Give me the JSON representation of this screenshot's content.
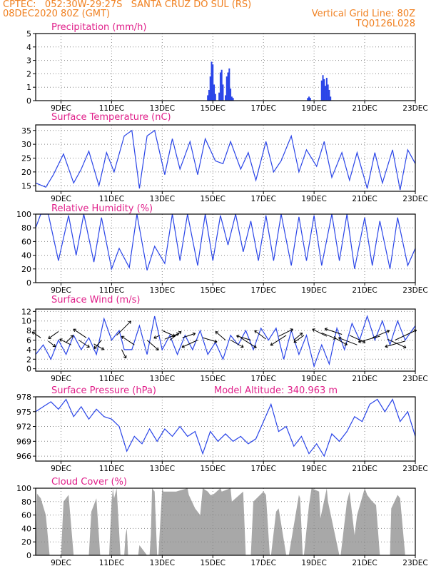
{
  "header": {
    "line1": "CPTEC:   052:30W-29:27S   SANTA CRUZ DO SUL (RS)",
    "line2_left": "08DEC2020 80Z (GMT)",
    "line2_right": "Vertical Grid Line: 80Z",
    "line3_right": "TQ0126L028"
  },
  "colors": {
    "header": "#f08020",
    "title": "#e0208a",
    "series": "#2a45e8",
    "cloud": "#a8a8a8",
    "grid": "#888888",
    "axis": "#000000"
  },
  "x_axis": {
    "start_day": 8.0,
    "end_day": 23.0,
    "tick_days": [
      9,
      11,
      13,
      15,
      17,
      19,
      21,
      23
    ],
    "tick_labels": [
      "9DEC",
      "11DEC",
      "13DEC",
      "15DEC",
      "17DEC",
      "19DEC",
      "21DEC",
      "23DEC"
    ]
  },
  "chart_data": [
    {
      "type": "bar",
      "title": "Precipitation (mm/h)",
      "ylim": [
        0,
        5
      ],
      "yticks": [
        0,
        1,
        2,
        3,
        4,
        5
      ],
      "x": [
        14.8,
        14.85,
        14.9,
        14.95,
        15.0,
        15.05,
        15.1,
        15.25,
        15.3,
        15.35,
        15.4,
        15.5,
        15.55,
        15.6,
        15.65,
        15.7,
        15.75,
        15.8,
        18.75,
        18.8,
        18.85,
        19.3,
        19.35,
        19.4,
        19.45,
        19.5,
        19.55,
        19.6,
        19.65
      ],
      "values": [
        0.4,
        0.8,
        1.8,
        2.9,
        2.7,
        1.2,
        0.5,
        0.6,
        2.1,
        2.3,
        1.2,
        0.4,
        1.8,
        2.1,
        2.4,
        0.9,
        0.3,
        0.2,
        0.2,
        0.3,
        0.2,
        1.5,
        1.9,
        1.6,
        1.1,
        1.7,
        1.2,
        0.8,
        0.3
      ]
    },
    {
      "type": "line",
      "title": "Surface Temperature (nC)",
      "ylim": [
        13,
        37
      ],
      "yticks": [
        15,
        20,
        25,
        30,
        35
      ],
      "x": [
        8.0,
        8.4,
        8.7,
        9.1,
        9.5,
        9.8,
        10.1,
        10.5,
        10.8,
        11.1,
        11.5,
        11.8,
        12.1,
        12.4,
        12.7,
        13.1,
        13.4,
        13.7,
        14.1,
        14.4,
        14.7,
        15.1,
        15.4,
        15.7,
        16.1,
        16.4,
        16.7,
        17.1,
        17.4,
        17.7,
        18.1,
        18.4,
        18.7,
        19.1,
        19.4,
        19.7,
        20.1,
        20.4,
        20.7,
        21.1,
        21.4,
        21.7,
        22.1,
        22.4,
        22.7,
        23.0
      ],
      "values": [
        16,
        14.5,
        19,
        26.5,
        16,
        21,
        27.5,
        15,
        27,
        20,
        33,
        35,
        14,
        33,
        35,
        19,
        32,
        21,
        31,
        19,
        32,
        24,
        23,
        31,
        21,
        27,
        17,
        31,
        20,
        24,
        33,
        20,
        28,
        22,
        31,
        18,
        27,
        17,
        27,
        14,
        27,
        16,
        28,
        13.5,
        28,
        23
      ]
    },
    {
      "type": "line",
      "title": "Relative Humidity (%)",
      "ylim": [
        0,
        100
      ],
      "yticks": [
        0,
        20,
        40,
        60,
        80,
        100
      ],
      "x": [
        8.0,
        8.2,
        8.5,
        8.9,
        9.3,
        9.6,
        9.9,
        10.3,
        10.6,
        11.0,
        11.3,
        11.7,
        12.0,
        12.4,
        12.7,
        13.1,
        13.4,
        13.7,
        14.0,
        14.4,
        14.7,
        15.0,
        15.3,
        15.6,
        15.9,
        16.2,
        16.5,
        16.8,
        17.1,
        17.4,
        17.7,
        18.1,
        18.4,
        18.7,
        19.0,
        19.3,
        19.7,
        20.0,
        20.3,
        20.6,
        21.0,
        21.3,
        21.6,
        22.0,
        22.3,
        22.7,
        23.0
      ],
      "values": [
        80,
        100,
        100,
        32,
        98,
        40,
        100,
        30,
        95,
        20,
        50,
        22,
        100,
        18,
        53,
        28,
        100,
        32,
        100,
        25,
        100,
        32,
        98,
        55,
        100,
        45,
        90,
        32,
        98,
        32,
        100,
        25,
        96,
        32,
        98,
        25,
        100,
        32,
        100,
        20,
        95,
        25,
        90,
        20,
        95,
        25,
        50
      ]
    },
    {
      "type": "line",
      "title": "Surface Wind (m/s)",
      "ylim": [
        -0.5,
        12.5
      ],
      "yticks": [
        0,
        2,
        4,
        6,
        8,
        10,
        12
      ],
      "x": [
        8.0,
        8.3,
        8.6,
        8.9,
        9.2,
        9.5,
        9.8,
        10.1,
        10.4,
        10.7,
        11.0,
        11.3,
        11.5,
        11.8,
        12.1,
        12.4,
        12.7,
        13.0,
        13.3,
        13.6,
        13.9,
        14.2,
        14.5,
        14.8,
        15.1,
        15.4,
        15.7,
        16.0,
        16.3,
        16.6,
        16.9,
        17.2,
        17.5,
        17.8,
        18.1,
        18.4,
        18.7,
        19.0,
        19.3,
        19.6,
        19.9,
        20.2,
        20.5,
        20.8,
        21.1,
        21.4,
        21.7,
        22.0,
        22.3,
        22.6,
        23.0
      ],
      "values": [
        3,
        5,
        2,
        6,
        3,
        7,
        4,
        6.5,
        3,
        10.5,
        6,
        8,
        4,
        4,
        9,
        3,
        11,
        4,
        7,
        3,
        7,
        4,
        8,
        3,
        5.5,
        2,
        7,
        5,
        8,
        4,
        8.5,
        6,
        8.5,
        2,
        8,
        3,
        7,
        0.5,
        5,
        1,
        8.5,
        4,
        9.5,
        6,
        11,
        6,
        10,
        5,
        10,
        6,
        9
      ]
    },
    {
      "type": "line",
      "title": "Surface Pressure (hPa)",
      "annotation": "Model Altitude: 340.963  m",
      "ylim": [
        965,
        978
      ],
      "yticks": [
        966,
        969,
        972,
        975,
        978
      ],
      "x": [
        8.0,
        8.3,
        8.6,
        8.9,
        9.2,
        9.5,
        9.8,
        10.1,
        10.4,
        10.7,
        11.0,
        11.3,
        11.6,
        11.9,
        12.2,
        12.5,
        12.8,
        13.1,
        13.4,
        13.7,
        14.0,
        14.3,
        14.6,
        14.9,
        15.2,
        15.5,
        15.8,
        16.1,
        16.4,
        16.7,
        17.0,
        17.3,
        17.6,
        17.9,
        18.2,
        18.5,
        18.8,
        19.1,
        19.4,
        19.7,
        20.0,
        20.3,
        20.6,
        20.9,
        21.2,
        21.5,
        21.8,
        22.1,
        22.4,
        22.7,
        23.0
      ],
      "values": [
        975,
        976,
        977,
        975.5,
        977.5,
        974,
        976,
        973.5,
        975.5,
        974,
        973.5,
        972,
        967,
        970,
        968.5,
        971.5,
        969,
        971.5,
        970,
        972,
        970,
        971,
        966.5,
        971,
        969,
        970.5,
        969,
        970,
        968.5,
        969.5,
        973,
        976.5,
        971,
        972,
        968,
        970,
        966.5,
        968.5,
        966,
        970.5,
        969,
        971,
        974,
        973,
        976.5,
        977.5,
        975,
        977.5,
        973,
        975,
        970
      ]
    },
    {
      "type": "area",
      "title": "Cloud Cover (%)",
      "ylim": [
        0,
        100
      ],
      "yticks": [
        0,
        20,
        40,
        60,
        80,
        100
      ],
      "x": [
        8.0,
        8.05,
        8.2,
        8.4,
        8.55,
        8.6,
        9.0,
        9.1,
        9.3,
        9.5,
        9.6,
        9.7,
        10.1,
        10.2,
        10.4,
        10.55,
        10.6,
        10.9,
        11.0,
        11.05,
        11.1,
        11.2,
        11.35,
        11.4,
        11.5,
        11.55,
        11.6,
        11.65,
        11.75,
        12.05,
        12.1,
        12.2,
        12.4,
        12.5,
        12.55,
        12.6,
        12.7,
        12.8,
        12.85,
        13.0,
        13.05,
        13.5,
        13.55,
        14.0,
        14.05,
        14.3,
        14.5,
        14.6,
        14.8,
        14.9,
        15.0,
        15.3,
        15.35,
        15.7,
        15.75,
        16.2,
        16.3,
        16.5,
        16.6,
        17.0,
        17.1,
        17.25,
        17.3,
        17.5,
        17.6,
        17.9,
        18.0,
        18.4,
        18.45,
        18.55,
        18.6,
        18.8,
        18.9,
        19.2,
        19.25,
        19.5,
        19.55,
        20.0,
        20.05,
        20.3,
        20.4,
        20.6,
        20.7,
        21.0,
        21.1,
        21.3,
        21.45,
        21.5,
        21.6,
        21.8,
        22.0,
        22.05,
        22.3,
        22.4,
        22.6,
        22.7,
        23.0
      ],
      "values": [
        0,
        92,
        85,
        60,
        0,
        0,
        0,
        80,
        90,
        0,
        0,
        0,
        0,
        65,
        85,
        0,
        0,
        0,
        80,
        100,
        85,
        100,
        0,
        0,
        0,
        30,
        40,
        0,
        0,
        0,
        15,
        10,
        0,
        0,
        30,
        100,
        95,
        0,
        0,
        100,
        95,
        95,
        95,
        100,
        90,
        70,
        60,
        100,
        95,
        90,
        90,
        100,
        95,
        100,
        80,
        95,
        0,
        0,
        80,
        95,
        90,
        0,
        0,
        65,
        70,
        0,
        0,
        90,
        85,
        0,
        0,
        75,
        100,
        95,
        55,
        100,
        80,
        0,
        0,
        80,
        95,
        30,
        60,
        100,
        90,
        80,
        75,
        50,
        0,
        0,
        0,
        70,
        90,
        85,
        0,
        0,
        0
      ]
    }
  ],
  "wind_arrows": {
    "days": [
      8.2,
      8.5,
      8.9,
      9.2,
      9.4,
      9.7,
      10.0,
      10.3,
      10.6,
      11.2,
      11.4,
      11.9,
      12.4,
      12.9,
      13.0,
      13.1,
      13.3,
      13.8,
      14.4,
      14.6,
      15.5,
      15.7,
      16.1,
      16.5,
      17.1,
      17.6,
      17.9,
      18.2,
      18.6,
      19.3,
      19.5,
      19.8,
      20.1,
      20.4,
      20.7,
      21.3,
      21.6,
      21.9,
      22.2,
      22.6
    ],
    "dx": [
      -12,
      10,
      -14,
      10,
      -16,
      15,
      -18,
      14,
      -10,
      20,
      6,
      -18,
      16,
      -8,
      18,
      20,
      16,
      18,
      -22,
      20,
      -14,
      18,
      22,
      -20,
      -16,
      20,
      -22,
      12,
      -14,
      20,
      -20,
      18,
      -24,
      22,
      -26,
      24,
      -30,
      26,
      30,
      -28
    ],
    "dy": [
      -8,
      8,
      10,
      -10,
      -8,
      10,
      -12,
      8,
      12,
      -20,
      12,
      -12,
      14,
      4,
      8,
      -8,
      -12,
      -6,
      10,
      6,
      -12,
      10,
      14,
      -6,
      -12,
      -10,
      14,
      -10,
      10,
      8,
      -10,
      10,
      -8,
      10,
      -10,
      -10,
      8,
      12,
      -14,
      8
    ],
    "y0": [
      6.5,
      5.8,
      7.8,
      5.5,
      5.0,
      6.0,
      6.5,
      5.2,
      6.0,
      7.0,
      4.0,
      5.0,
      6.0,
      7.0,
      8.0,
      6.2,
      6.0,
      6.5,
      6.0,
      6.5,
      6.0,
      6.0,
      6.5,
      6.0,
      6.2,
      6.8,
      7.0,
      6.0,
      7.0,
      7.5,
      6.8,
      6.5,
      7.2,
      7.0,
      5.0,
      6.5,
      6.8,
      6.2,
      6.0,
      5.8
    ]
  },
  "panel_titles": [
    "Precipitation (mm/h)",
    "Surface Temperature (nC)",
    "Relative Humidity (%)",
    "Surface Wind (m/s)",
    "Surface Pressure (hPa)",
    "Cloud Cover (%)"
  ]
}
